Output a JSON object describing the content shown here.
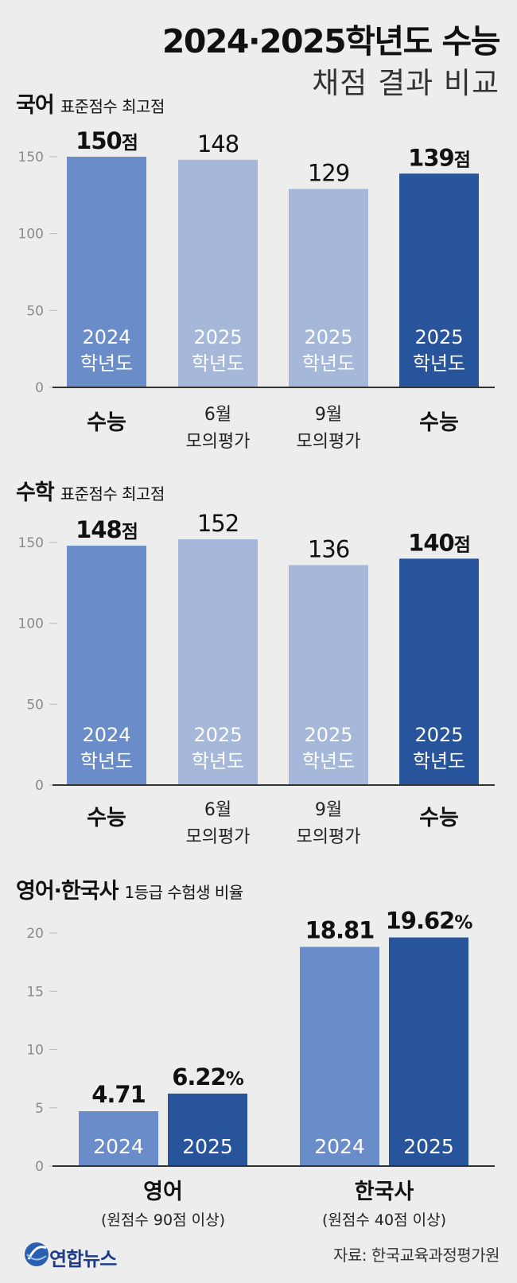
{
  "header": {
    "title": "2024·2025학년도 수능",
    "subtitle": "채점 결과 비교"
  },
  "colors": {
    "bar_2024": "#6a8dc9",
    "bar_mock": "#a6b8d9",
    "bar_2025": "#27549a",
    "axis": "#333333",
    "tick_text": "#8a8a8a"
  },
  "chart_data": [
    {
      "type": "bar",
      "title": "국어",
      "subtitle": "표준점수 최고점",
      "categories": [
        [
          "수능"
        ],
        [
          "6월",
          "모의평가"
        ],
        [
          "9월",
          "모의평가"
        ],
        [
          "수능"
        ]
      ],
      "bar_labels": [
        [
          "2024",
          "학년도"
        ],
        [
          "2025",
          "학년도"
        ],
        [
          "2025",
          "학년도"
        ],
        [
          "2025",
          "학년도"
        ]
      ],
      "values": [
        150,
        148,
        129,
        139
      ],
      "value_labels": [
        {
          "num": "150",
          "unit": "점",
          "bold": true
        },
        {
          "num": "148",
          "unit": "",
          "bold": false
        },
        {
          "num": "129",
          "unit": "",
          "bold": false
        },
        {
          "num": "139",
          "unit": "점",
          "bold": true
        }
      ],
      "bar_colors": [
        "bar_2024",
        "bar_mock",
        "bar_mock",
        "bar_2025"
      ],
      "category_bold": [
        true,
        false,
        false,
        true
      ],
      "yticks": [
        "0",
        "50",
        "100",
        "150"
      ],
      "ylim": [
        0,
        160
      ]
    },
    {
      "type": "bar",
      "title": "수학",
      "subtitle": "표준점수 최고점",
      "categories": [
        [
          "수능"
        ],
        [
          "6월",
          "모의평가"
        ],
        [
          "9월",
          "모의평가"
        ],
        [
          "수능"
        ]
      ],
      "bar_labels": [
        [
          "2024",
          "학년도"
        ],
        [
          "2025",
          "학년도"
        ],
        [
          "2025",
          "학년도"
        ],
        [
          "2025",
          "학년도"
        ]
      ],
      "values": [
        148,
        152,
        136,
        140
      ],
      "value_labels": [
        {
          "num": "148",
          "unit": "점",
          "bold": true
        },
        {
          "num": "152",
          "unit": "",
          "bold": false
        },
        {
          "num": "136",
          "unit": "",
          "bold": false
        },
        {
          "num": "140",
          "unit": "점",
          "bold": true
        }
      ],
      "bar_colors": [
        "bar_2024",
        "bar_mock",
        "bar_mock",
        "bar_2025"
      ],
      "category_bold": [
        true,
        false,
        false,
        true
      ],
      "yticks": [
        "0",
        "50",
        "100",
        "150"
      ],
      "ylim": [
        0,
        160
      ]
    },
    {
      "type": "bar",
      "title": "영어·한국사",
      "subtitle": "1등급 수험생 비율",
      "groups": [
        {
          "name": "영어",
          "note": "(원점수 90점 이상)",
          "bars": [
            {
              "label": "2024",
              "value": 4.71,
              "num": "4.71",
              "unit": "",
              "color": "bar_2024"
            },
            {
              "label": "2025",
              "value": 6.22,
              "num": "6.22",
              "unit": "%",
              "color": "bar_2025"
            }
          ]
        },
        {
          "name": "한국사",
          "note": "(원점수 40점 이상)",
          "bars": [
            {
              "label": "2024",
              "value": 18.81,
              "num": "18.81",
              "unit": "",
              "color": "bar_2024"
            },
            {
              "label": "2025",
              "value": 19.62,
              "num": "19.62",
              "unit": "%",
              "color": "bar_2025"
            }
          ]
        }
      ],
      "yticks": [
        "0",
        "5",
        "10",
        "15",
        "20"
      ],
      "ylim": [
        0,
        22.2
      ]
    }
  ],
  "footer": {
    "logo": "연합뉴스",
    "logo_icon": "yonhap-globe-icon",
    "source": "자료: 한국교육과정평가원"
  }
}
